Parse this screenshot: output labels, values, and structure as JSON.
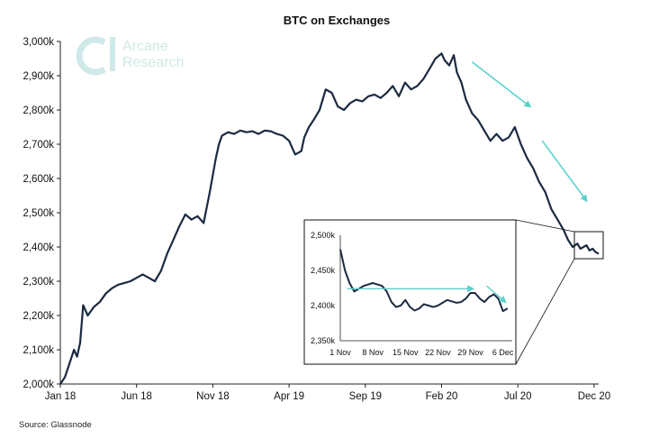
{
  "colors": {
    "line": "#1b2a41",
    "arrow": "#5ad1cb",
    "logo": "#cfe9e6",
    "axis": "#222222"
  },
  "logo": {
    "line1": "Arcane",
    "line2": "Research",
    "icon": "arcane-logo-icon"
  },
  "source": "Source: Glassnode",
  "chart_data": [
    {
      "type": "line",
      "title": "BTC on Exchanges",
      "xlabel": "",
      "ylabel": "",
      "ylim": [
        2000,
        3000
      ],
      "yticks": [
        2000,
        2100,
        2200,
        2300,
        2400,
        2500,
        2600,
        2700,
        2800,
        2900,
        3000
      ],
      "ytick_labels": [
        "2,000k",
        "2,100k",
        "2,200k",
        "2,300k",
        "2,400k",
        "2,500k",
        "2,600k",
        "2,700k",
        "2,800k",
        "2,900k",
        "3,000k"
      ],
      "xlim": [
        0,
        35.3
      ],
      "xticks": [
        0,
        5,
        10,
        15,
        20,
        25,
        30,
        35
      ],
      "xtick_labels": [
        "Jan 18",
        "Jun 18",
        "Nov 18",
        "Apr 19",
        "Sep 19",
        "Feb 20",
        "Jul 20",
        "Dec 20"
      ],
      "x_unit": "months since Jan 2018",
      "grid": false,
      "series": [
        {
          "name": "BTC on Exchanges (k)",
          "x": [
            0,
            0.3,
            0.6,
            0.9,
            1.1,
            1.3,
            1.5,
            1.8,
            2.2,
            2.6,
            3.0,
            3.4,
            3.8,
            4.2,
            4.6,
            5.0,
            5.4,
            5.8,
            6.2,
            6.6,
            7.0,
            7.4,
            7.8,
            8.2,
            8.6,
            9.0,
            9.4,
            9.8,
            10.2,
            10.4,
            10.6,
            11.0,
            11.4,
            11.8,
            12.2,
            12.6,
            13.0,
            13.4,
            13.8,
            14.2,
            14.6,
            15.0,
            15.4,
            15.8,
            16.0,
            16.3,
            16.6,
            17.0,
            17.4,
            17.8,
            18.2,
            18.6,
            19.0,
            19.4,
            19.8,
            20.2,
            20.6,
            21.0,
            21.4,
            21.8,
            22.2,
            22.6,
            23.0,
            23.4,
            23.8,
            24.2,
            24.6,
            25.0,
            25.2,
            25.5,
            25.8,
            26.0,
            26.3,
            26.6,
            27.0,
            27.4,
            27.8,
            28.2,
            28.6,
            29.0,
            29.4,
            29.8,
            30.2,
            30.6,
            31.0,
            31.4,
            31.8,
            32.2,
            32.6,
            33.0,
            33.3,
            33.6,
            33.9,
            34.1,
            34.3,
            34.5,
            34.7,
            34.9,
            35.1,
            35.3
          ],
          "values": [
            2000,
            2020,
            2060,
            2100,
            2080,
            2120,
            2230,
            2200,
            2225,
            2240,
            2265,
            2280,
            2290,
            2295,
            2300,
            2310,
            2320,
            2310,
            2300,
            2330,
            2380,
            2420,
            2460,
            2495,
            2480,
            2490,
            2470,
            2560,
            2660,
            2700,
            2725,
            2735,
            2730,
            2740,
            2735,
            2738,
            2730,
            2740,
            2738,
            2730,
            2725,
            2710,
            2670,
            2680,
            2720,
            2750,
            2770,
            2800,
            2860,
            2850,
            2810,
            2800,
            2820,
            2830,
            2825,
            2840,
            2845,
            2835,
            2850,
            2870,
            2840,
            2880,
            2860,
            2870,
            2890,
            2920,
            2950,
            2965,
            2945,
            2930,
            2960,
            2910,
            2880,
            2830,
            2790,
            2770,
            2740,
            2710,
            2730,
            2710,
            2720,
            2750,
            2700,
            2660,
            2630,
            2590,
            2560,
            2510,
            2480,
            2450,
            2420,
            2400,
            2410,
            2395,
            2400,
            2405,
            2390,
            2395,
            2385,
            2380
          ]
        }
      ],
      "arrows": [
        {
          "from": [
            27.0,
            2940
          ],
          "to": [
            30.8,
            2810
          ]
        },
        {
          "from": [
            31.6,
            2710
          ],
          "to": [
            34.5,
            2535
          ]
        }
      ]
    },
    {
      "type": "line",
      "title": "",
      "role": "inset zoom of Nov–Dec 2020",
      "ylim": [
        2350,
        2500
      ],
      "yticks": [
        2350,
        2400,
        2450,
        2500
      ],
      "ytick_labels": [
        "2,350k",
        "2,400k",
        "2,450k",
        "2,500k"
      ],
      "xlim": [
        1,
        38
      ],
      "xticks": [
        1,
        8,
        15,
        22,
        29,
        36
      ],
      "xtick_labels": [
        "1 Nov",
        "8 Nov",
        "15 Nov",
        "22 Nov",
        "29 Nov",
        "6 Dec"
      ],
      "x_unit": "day counted from 1 Nov 2020",
      "series": [
        {
          "name": "BTC on Exchanges (k)",
          "x": [
            1,
            2,
            3,
            4,
            5,
            6,
            7,
            8,
            9,
            10,
            11,
            12,
            13,
            14,
            15,
            16,
            17,
            18,
            19,
            20,
            21,
            22,
            23,
            24,
            25,
            26,
            27,
            28,
            29,
            30,
            31,
            32,
            33,
            34,
            35,
            36,
            37
          ],
          "values": [
            2480,
            2450,
            2432,
            2420,
            2424,
            2428,
            2430,
            2432,
            2430,
            2428,
            2420,
            2405,
            2398,
            2400,
            2408,
            2398,
            2393,
            2396,
            2402,
            2400,
            2398,
            2400,
            2404,
            2408,
            2406,
            2404,
            2405,
            2410,
            2418,
            2418,
            2410,
            2405,
            2412,
            2416,
            2410,
            2392,
            2396
          ]
        }
      ],
      "arrows": [
        {
          "from": [
            2.5,
            2424
          ],
          "to": [
            29.5,
            2424
          ]
        },
        {
          "from": [
            32.5,
            2428
          ],
          "to": [
            36.5,
            2405
          ]
        }
      ]
    }
  ]
}
